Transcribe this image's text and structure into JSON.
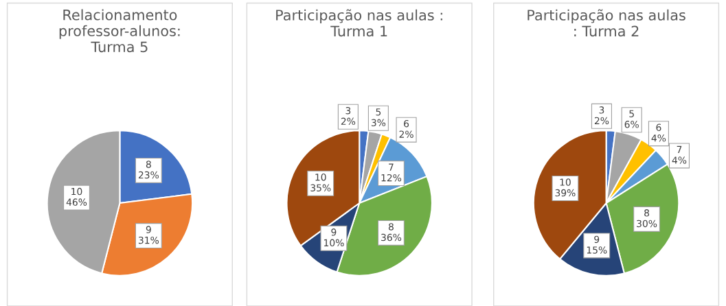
{
  "chart_data": [
    {
      "type": "pie",
      "title": "Relacionamento\nprofessor-alunos:\nTurma 5",
      "categories": [
        "8",
        "9",
        "10"
      ],
      "values": [
        23,
        31,
        46
      ],
      "colors": [
        "#4472c4",
        "#ed7d31",
        "#a5a5a5"
      ],
      "value_labels": [
        "23%",
        "31%",
        "46%"
      ]
    },
    {
      "type": "pie",
      "title": "Participação nas aulas :\nTurma 1",
      "categories": [
        "3",
        "5",
        "6",
        "7",
        "8",
        "9",
        "10"
      ],
      "values": [
        2,
        3,
        2,
        12,
        36,
        10,
        35
      ],
      "colors": [
        "#4472c4",
        "#a5a5a5",
        "#ffc000",
        "#5b9bd5",
        "#70ad47",
        "#264478",
        "#9e480e"
      ],
      "value_labels": [
        "2%",
        "3%",
        "2%",
        "12%",
        "36%",
        "10%",
        "35%"
      ]
    },
    {
      "type": "pie",
      "title": "Participação nas aulas\n: Turma 2",
      "categories": [
        "3",
        "5",
        "6",
        "7",
        "8",
        "9",
        "10"
      ],
      "values": [
        2,
        6,
        4,
        4,
        30,
        15,
        39
      ],
      "colors": [
        "#4472c4",
        "#a5a5a5",
        "#ffc000",
        "#5b9bd5",
        "#70ad47",
        "#264478",
        "#9e480e"
      ],
      "value_labels": [
        "2%",
        "6%",
        "4%",
        "4%",
        "30%",
        "15%",
        "39%"
      ]
    }
  ]
}
